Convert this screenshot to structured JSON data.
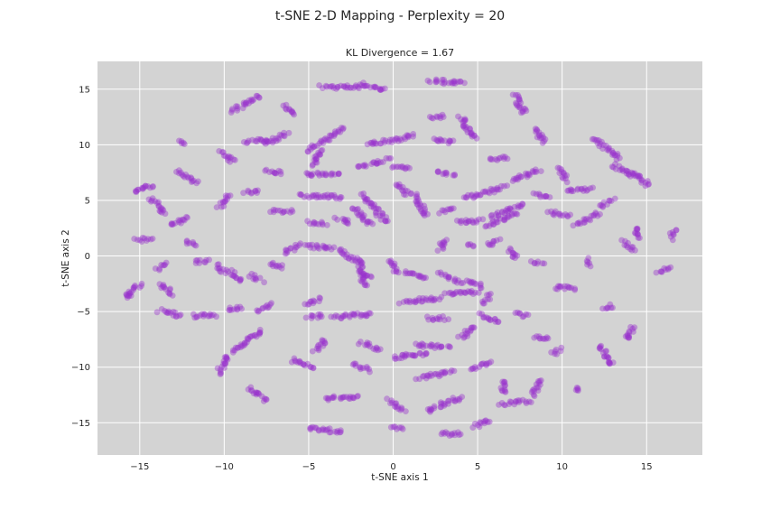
{
  "figure": {
    "suptitle": "t-SNE 2-D Mapping - Perplexity = 20"
  },
  "chart_data": {
    "type": "scatter",
    "title": "KL Divergence = 1.67",
    "xlabel": "t-SNE axis 1",
    "ylabel": "t-SNE axis 2",
    "xlim": [
      -17.5,
      18.3
    ],
    "ylim": [
      -17.9,
      17.5
    ],
    "xticks": [
      -15,
      -10,
      -5,
      0,
      5,
      10,
      15
    ],
    "yticks": [
      -15,
      -10,
      -5,
      0,
      5,
      10,
      15
    ],
    "grid": true,
    "colors": {
      "point": "#9932CC",
      "background": "#D3D3D3",
      "grid": "#FFFFFF",
      "text": "#262626"
    },
    "point_alpha": 0.4,
    "clusters": [
      {
        "x1": -4.2,
        "y1": 15.2,
        "x2": -2.0,
        "y2": 15.2
      },
      {
        "x1": -2.0,
        "y1": 15.5,
        "x2": -0.5,
        "y2": 14.9
      },
      {
        "x1": 2.2,
        "y1": 15.8,
        "x2": 4.2,
        "y2": 15.5
      },
      {
        "x1": -9.5,
        "y1": 13.0,
        "x2": -8.0,
        "y2": 14.4
      },
      {
        "x1": -6.5,
        "y1": 13.5,
        "x2": -5.8,
        "y2": 12.8
      },
      {
        "x1": 7.2,
        "y1": 14.5,
        "x2": 7.8,
        "y2": 12.8
      },
      {
        "x1": 8.5,
        "y1": 11.5,
        "x2": 8.9,
        "y2": 10.2
      },
      {
        "x1": 11.8,
        "y1": 10.5,
        "x2": 13.4,
        "y2": 8.8
      },
      {
        "x1": 13.0,
        "y1": 8.2,
        "x2": 14.2,
        "y2": 7.2
      },
      {
        "x1": 14.0,
        "y1": 7.6,
        "x2": 15.1,
        "y2": 6.4
      },
      {
        "x1": -8.7,
        "y1": 10.3,
        "x2": -7.2,
        "y2": 10.4
      },
      {
        "x1": -7.5,
        "y1": 10.2,
        "x2": -6.3,
        "y2": 11.0
      },
      {
        "x1": -10.3,
        "y1": 9.3,
        "x2": -9.4,
        "y2": 8.5
      },
      {
        "x1": -12.8,
        "y1": 7.6,
        "x2": -11.6,
        "y2": 6.6
      },
      {
        "x1": -5.0,
        "y1": 9.5,
        "x2": -3.0,
        "y2": 11.5
      },
      {
        "x1": -4.8,
        "y1": 8.2,
        "x2": -4.2,
        "y2": 9.5
      },
      {
        "x1": -1.5,
        "y1": 10.0,
        "x2": 1.2,
        "y2": 10.8
      },
      {
        "x1": 2.2,
        "y1": 12.5,
        "x2": 3.0,
        "y2": 12.6
      },
      {
        "x1": 4.0,
        "y1": 12.5,
        "x2": 4.8,
        "y2": 10.5
      },
      {
        "x1": 2.4,
        "y1": 10.5,
        "x2": 3.5,
        "y2": 10.2
      },
      {
        "x1": 5.8,
        "y1": 8.7,
        "x2": 6.8,
        "y2": 8.9
      },
      {
        "x1": -7.5,
        "y1": 7.6,
        "x2": -6.5,
        "y2": 7.5
      },
      {
        "x1": -5.2,
        "y1": 7.4,
        "x2": -3.2,
        "y2": 7.3
      },
      {
        "x1": -2.0,
        "y1": 8.0,
        "x2": -0.3,
        "y2": 8.7
      },
      {
        "x1": 0.0,
        "y1": 8.0,
        "x2": 1.0,
        "y2": 8.0
      },
      {
        "x1": 2.6,
        "y1": 7.5,
        "x2": 3.6,
        "y2": 7.4
      },
      {
        "x1": 4.2,
        "y1": 5.2,
        "x2": 6.6,
        "y2": 6.2
      },
      {
        "x1": 7.0,
        "y1": 6.8,
        "x2": 8.7,
        "y2": 7.7
      },
      {
        "x1": 9.8,
        "y1": 7.9,
        "x2": 10.3,
        "y2": 6.8
      },
      {
        "x1": -15.4,
        "y1": 5.7,
        "x2": -14.2,
        "y2": 6.4
      },
      {
        "x1": -14.3,
        "y1": 5.2,
        "x2": -13.6,
        "y2": 3.8
      },
      {
        "x1": -13.2,
        "y1": 2.8,
        "x2": -12.1,
        "y2": 3.4
      },
      {
        "x1": -15.2,
        "y1": 1.4,
        "x2": -14.3,
        "y2": 1.6
      },
      {
        "x1": -10.3,
        "y1": 4.4,
        "x2": -9.7,
        "y2": 5.4
      },
      {
        "x1": -8.8,
        "y1": 5.7,
        "x2": -8.0,
        "y2": 5.8
      },
      {
        "x1": -7.2,
        "y1": 4.1,
        "x2": -6.0,
        "y2": 4.0
      },
      {
        "x1": -5.5,
        "y1": 5.4,
        "x2": -3.0,
        "y2": 5.3
      },
      {
        "x1": -5.0,
        "y1": 3.0,
        "x2": -4.0,
        "y2": 2.8
      },
      {
        "x1": -3.3,
        "y1": 3.4,
        "x2": -2.5,
        "y2": 3.0
      },
      {
        "x1": -1.8,
        "y1": 5.5,
        "x2": -0.4,
        "y2": 3.0
      },
      {
        "x1": -2.3,
        "y1": 4.4,
        "x2": -1.3,
        "y2": 2.8
      },
      {
        "x1": 0.3,
        "y1": 6.5,
        "x2": 0.9,
        "y2": 5.5
      },
      {
        "x1": 1.2,
        "y1": 5.5,
        "x2": 2.0,
        "y2": 3.6
      },
      {
        "x1": 2.8,
        "y1": 4.0,
        "x2": 3.6,
        "y2": 4.2
      },
      {
        "x1": 3.8,
        "y1": 3.0,
        "x2": 5.2,
        "y2": 3.2
      },
      {
        "x1": 5.5,
        "y1": 2.7,
        "x2": 7.3,
        "y2": 3.8
      },
      {
        "x1": 5.8,
        "y1": 3.5,
        "x2": 7.7,
        "y2": 4.6
      },
      {
        "x1": 8.3,
        "y1": 5.5,
        "x2": 9.2,
        "y2": 5.3
      },
      {
        "x1": 9.2,
        "y1": 4.0,
        "x2": 10.4,
        "y2": 3.6
      },
      {
        "x1": 10.3,
        "y1": 5.8,
        "x2": 11.7,
        "y2": 6.0
      },
      {
        "x1": 10.8,
        "y1": 2.8,
        "x2": 12.2,
        "y2": 3.8
      },
      {
        "x1": 12.2,
        "y1": 4.5,
        "x2": 13.0,
        "y2": 5.0
      },
      {
        "x1": 14.4,
        "y1": 2.6,
        "x2": 14.6,
        "y2": 1.6
      },
      {
        "x1": 13.6,
        "y1": 1.3,
        "x2": 14.2,
        "y2": 0.5
      },
      {
        "x1": 16.6,
        "y1": 2.3,
        "x2": 16.5,
        "y2": 1.6
      },
      {
        "x1": -14.0,
        "y1": -1.2,
        "x2": -13.5,
        "y2": -0.7
      },
      {
        "x1": -15.7,
        "y1": -3.6,
        "x2": -15.0,
        "y2": -2.5
      },
      {
        "x1": -13.7,
        "y1": -2.5,
        "x2": -13.1,
        "y2": -3.5
      },
      {
        "x1": -12.3,
        "y1": 1.3,
        "x2": -11.6,
        "y2": 1.0
      },
      {
        "x1": -11.8,
        "y1": -0.6,
        "x2": -11.0,
        "y2": -0.4
      },
      {
        "x1": -10.5,
        "y1": -0.8,
        "x2": -10.0,
        "y2": -1.4
      },
      {
        "x1": -9.7,
        "y1": -1.2,
        "x2": -9.0,
        "y2": -2.3
      },
      {
        "x1": -8.5,
        "y1": -1.7,
        "x2": -7.8,
        "y2": -2.2
      },
      {
        "x1": -7.3,
        "y1": -0.6,
        "x2": -6.5,
        "y2": -1.0
      },
      {
        "x1": -6.5,
        "y1": 0.3,
        "x2": -5.5,
        "y2": 1.0
      },
      {
        "x1": -5.2,
        "y1": 0.9,
        "x2": -3.5,
        "y2": 0.7
      },
      {
        "x1": -3.3,
        "y1": 0.5,
        "x2": -2.0,
        "y2": -0.5
      },
      {
        "x1": -2.0,
        "y1": -0.3,
        "x2": -1.7,
        "y2": -2.7
      },
      {
        "x1": -1.6,
        "y1": -1.5,
        "x2": -1.3,
        "y2": -2.0
      },
      {
        "x1": -0.2,
        "y1": -0.4,
        "x2": 0.3,
        "y2": -1.5
      },
      {
        "x1": 0.7,
        "y1": -1.4,
        "x2": 2.0,
        "y2": -2.0
      },
      {
        "x1": 2.8,
        "y1": -1.6,
        "x2": 4.0,
        "y2": -2.4
      },
      {
        "x1": 4.3,
        "y1": -2.3,
        "x2": 5.3,
        "y2": -2.8
      },
      {
        "x1": 2.8,
        "y1": 0.5,
        "x2": 3.0,
        "y2": 1.5
      },
      {
        "x1": 4.5,
        "y1": 1.0,
        "x2": 4.7,
        "y2": 0.7
      },
      {
        "x1": 5.6,
        "y1": 0.9,
        "x2": 6.2,
        "y2": 1.5
      },
      {
        "x1": 6.8,
        "y1": 0.6,
        "x2": 7.3,
        "y2": -0.3
      },
      {
        "x1": 8.2,
        "y1": -0.6,
        "x2": 8.8,
        "y2": -0.7
      },
      {
        "x1": 9.5,
        "y1": -2.8,
        "x2": 10.8,
        "y2": -2.9
      },
      {
        "x1": 11.5,
        "y1": -0.3,
        "x2": 11.7,
        "y2": -0.8
      },
      {
        "x1": 12.4,
        "y1": -4.7,
        "x2": 13.0,
        "y2": -4.5
      },
      {
        "x1": 15.7,
        "y1": -1.5,
        "x2": 16.4,
        "y2": -1.0
      },
      {
        "x1": -13.8,
        "y1": -4.9,
        "x2": -12.5,
        "y2": -5.4
      },
      {
        "x1": -11.8,
        "y1": -5.4,
        "x2": -10.4,
        "y2": -5.3
      },
      {
        "x1": -9.8,
        "y1": -4.9,
        "x2": -8.9,
        "y2": -4.6
      },
      {
        "x1": -8.0,
        "y1": -5.0,
        "x2": -7.3,
        "y2": -4.3
      },
      {
        "x1": -5.2,
        "y1": -4.3,
        "x2": -4.3,
        "y2": -3.9
      },
      {
        "x1": -5.1,
        "y1": -5.5,
        "x2": -4.2,
        "y2": -5.3
      },
      {
        "x1": -3.6,
        "y1": -5.5,
        "x2": -1.3,
        "y2": -5.2
      },
      {
        "x1": 0.5,
        "y1": -4.1,
        "x2": 2.8,
        "y2": -3.8
      },
      {
        "x1": 3.1,
        "y1": -3.3,
        "x2": 5.0,
        "y2": -3.3
      },
      {
        "x1": 2.0,
        "y1": -5.6,
        "x2": 3.1,
        "y2": -5.6
      },
      {
        "x1": 5.3,
        "y1": -4.2,
        "x2": 5.8,
        "y2": -3.5
      },
      {
        "x1": 5.2,
        "y1": -5.3,
        "x2": 6.3,
        "y2": -6.0
      },
      {
        "x1": 7.3,
        "y1": -5.1,
        "x2": 8.0,
        "y2": -5.4
      },
      {
        "x1": 8.3,
        "y1": -7.4,
        "x2": 9.2,
        "y2": -7.3
      },
      {
        "x1": 9.9,
        "y1": -8.3,
        "x2": 9.5,
        "y2": -8.8
      },
      {
        "x1": 12.2,
        "y1": -8.2,
        "x2": 13.0,
        "y2": -9.8
      },
      {
        "x1": 13.8,
        "y1": -7.5,
        "x2": 14.2,
        "y2": -6.4
      },
      {
        "x1": -10.3,
        "y1": -10.5,
        "x2": -9.8,
        "y2": -8.9
      },
      {
        "x1": -9.5,
        "y1": -8.6,
        "x2": -7.8,
        "y2": -6.7
      },
      {
        "x1": -8.5,
        "y1": -11.8,
        "x2": -7.5,
        "y2": -12.9
      },
      {
        "x1": -6.0,
        "y1": -9.3,
        "x2": -4.8,
        "y2": -10.1
      },
      {
        "x1": -4.6,
        "y1": -8.5,
        "x2": -4.0,
        "y2": -7.5
      },
      {
        "x1": -4.0,
        "y1": -12.8,
        "x2": -2.0,
        "y2": -12.7
      },
      {
        "x1": -5.0,
        "y1": -15.5,
        "x2": -3.0,
        "y2": -15.8
      },
      {
        "x1": -2.3,
        "y1": -9.6,
        "x2": -1.5,
        "y2": -10.3
      },
      {
        "x1": -1.9,
        "y1": -7.8,
        "x2": -0.8,
        "y2": -8.5
      },
      {
        "x1": 0.0,
        "y1": -9.2,
        "x2": 2.0,
        "y2": -8.7
      },
      {
        "x1": 1.3,
        "y1": -8.0,
        "x2": 3.3,
        "y2": -8.2
      },
      {
        "x1": 4.0,
        "y1": -7.4,
        "x2": 4.8,
        "y2": -6.3
      },
      {
        "x1": 1.5,
        "y1": -11.0,
        "x2": 3.5,
        "y2": -10.4
      },
      {
        "x1": 4.6,
        "y1": -10.2,
        "x2": 5.7,
        "y2": -9.5
      },
      {
        "x1": -0.2,
        "y1": -13.0,
        "x2": 0.6,
        "y2": -14.0
      },
      {
        "x1": 0.0,
        "y1": -15.5,
        "x2": 0.6,
        "y2": -15.5
      },
      {
        "x1": 2.0,
        "y1": -13.9,
        "x2": 4.0,
        "y2": -12.7
      },
      {
        "x1": 2.8,
        "y1": -16.0,
        "x2": 4.0,
        "y2": -16.0
      },
      {
        "x1": 4.8,
        "y1": -15.3,
        "x2": 5.8,
        "y2": -14.8
      },
      {
        "x1": 6.4,
        "y1": -13.4,
        "x2": 8.0,
        "y2": -13.0
      },
      {
        "x1": 8.3,
        "y1": -12.5,
        "x2": 8.8,
        "y2": -11.2
      },
      {
        "x1": 6.5,
        "y1": -11.2,
        "x2": 6.6,
        "y2": -12.3
      },
      {
        "x1": 10.9,
        "y1": -12.0,
        "x2": 10.9,
        "y2": -12.0
      },
      {
        "x1": -12.5,
        "y1": 10.2,
        "x2": -12.5,
        "y2": 10.2
      },
      {
        "x1": -15.7,
        "y1": -3.6,
        "x2": -15.7,
        "y2": -3.6
      }
    ]
  }
}
